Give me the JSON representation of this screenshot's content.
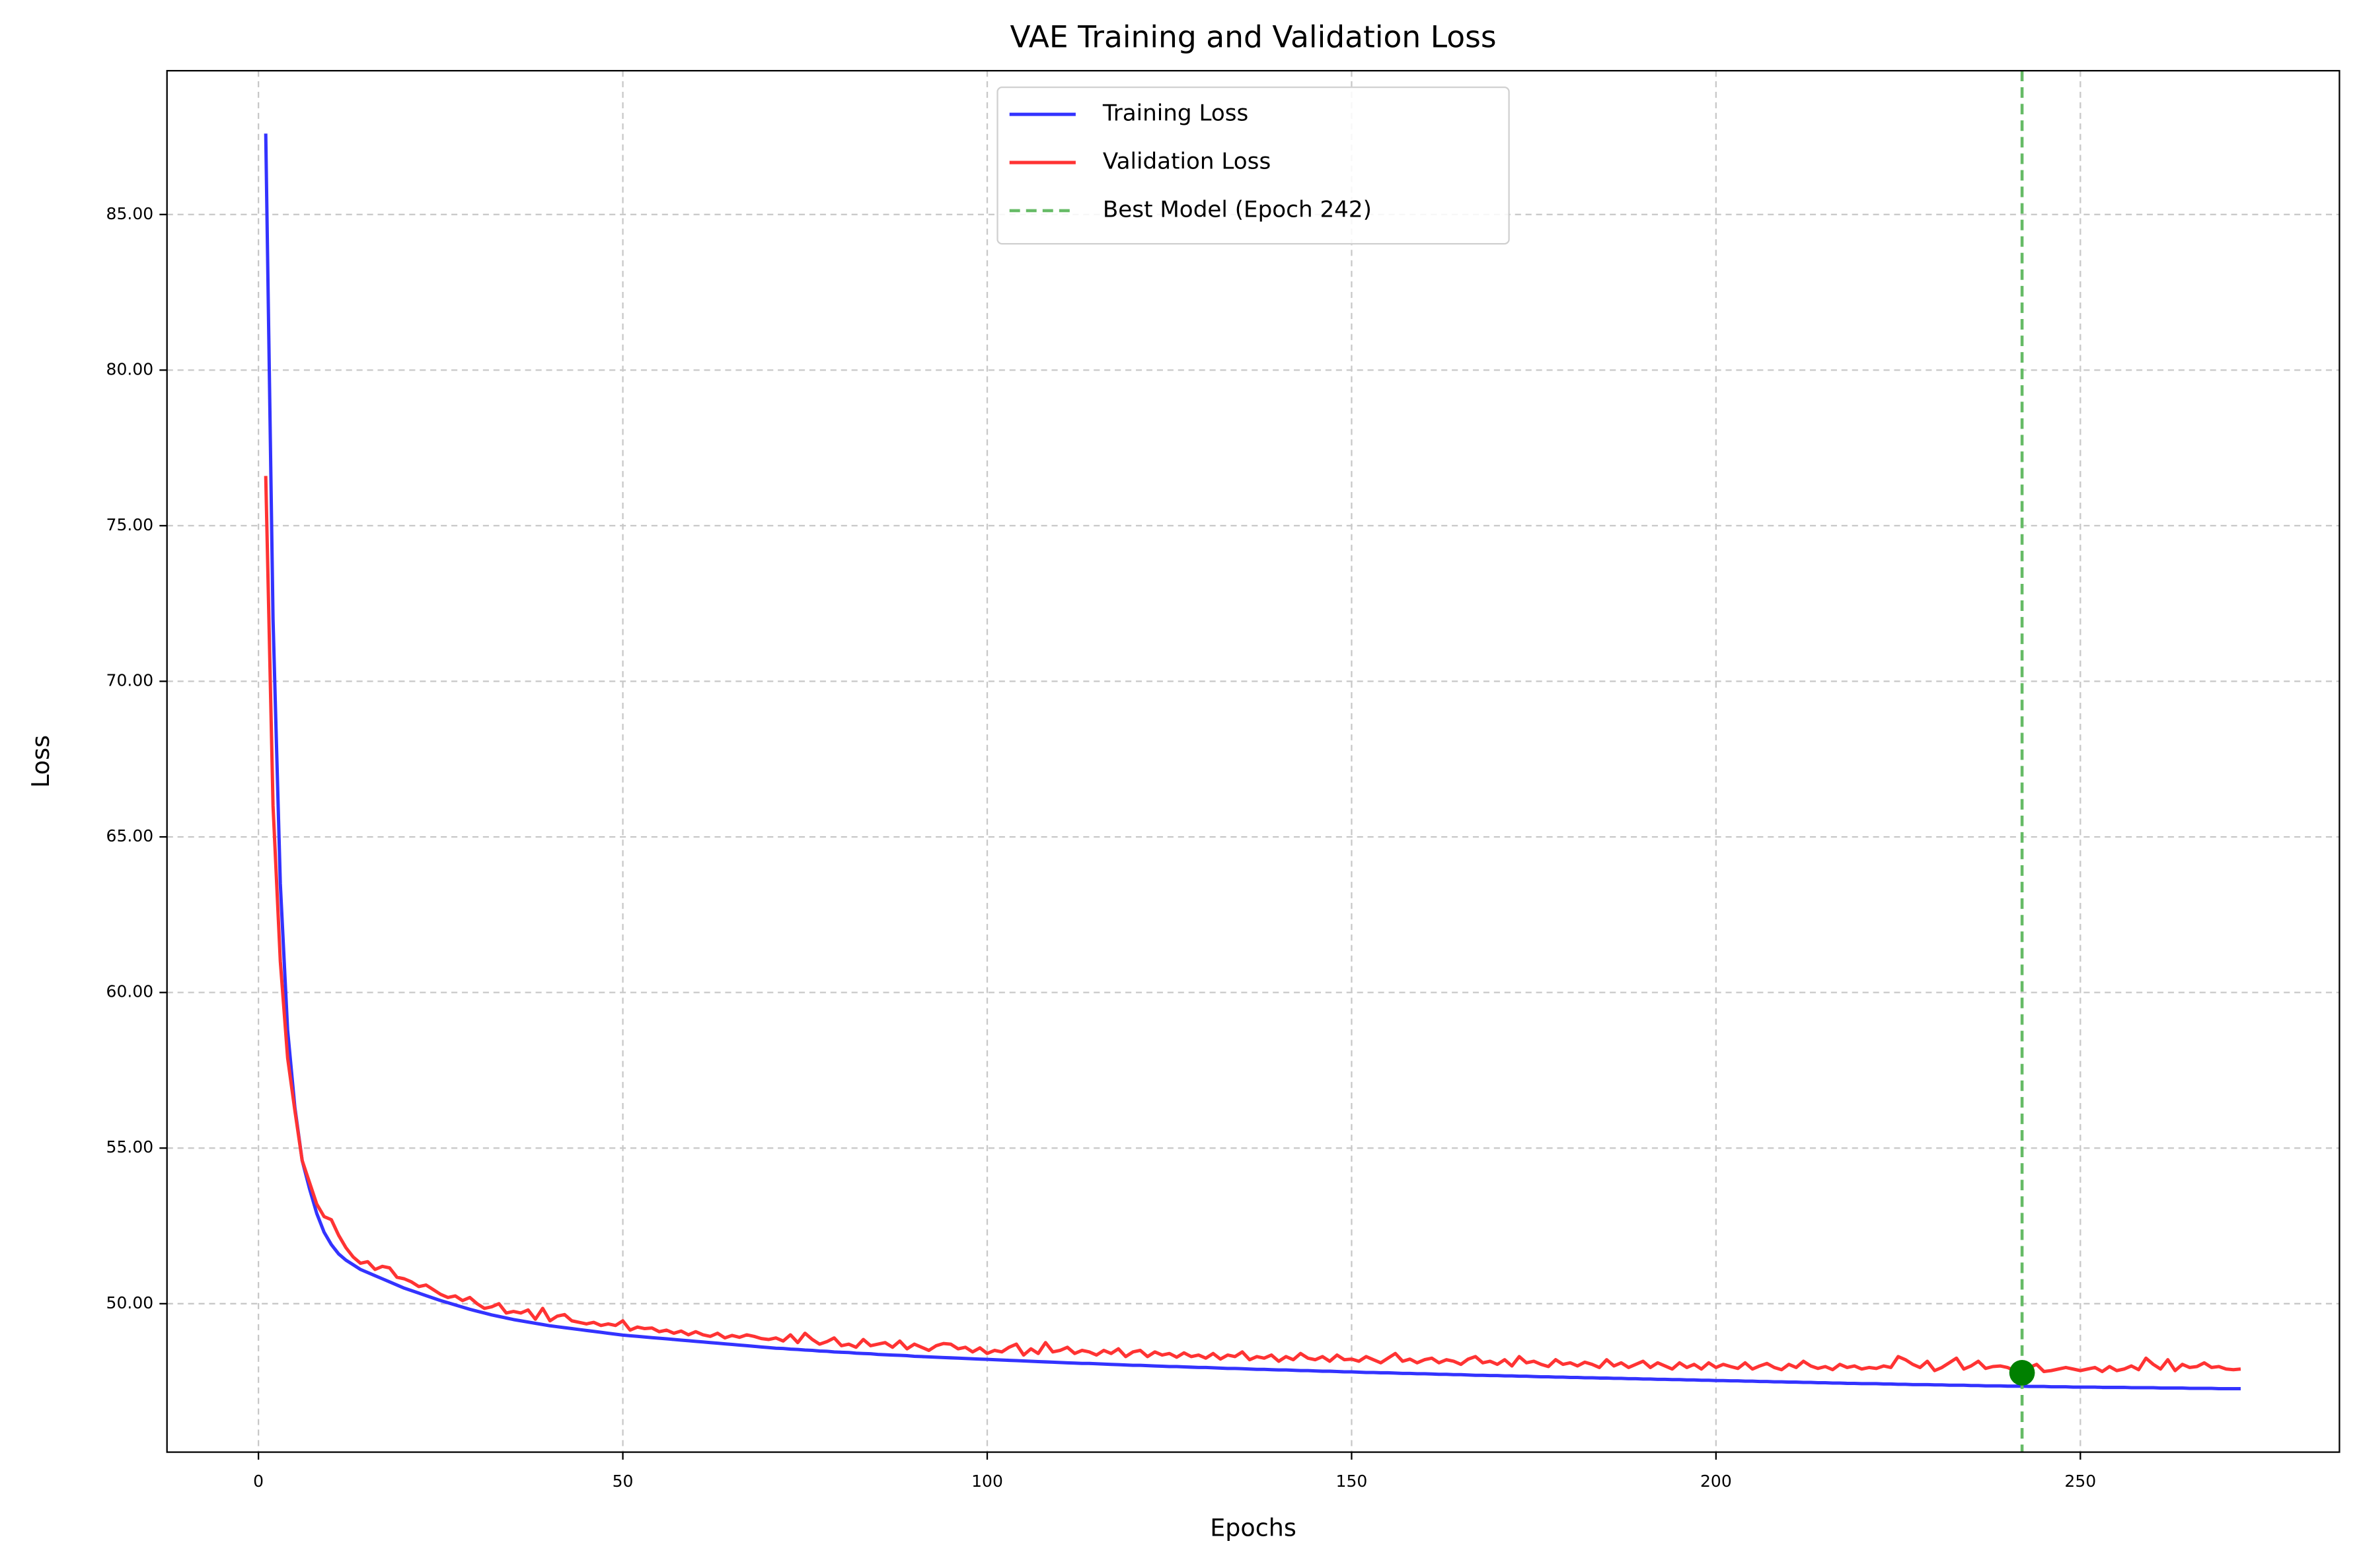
{
  "chart_data": {
    "type": "line",
    "title": "VAE Training and Validation Loss",
    "x_label": "Epochs",
    "y_label": "Loss",
    "x": [
      1,
      2,
      3,
      4,
      5,
      6,
      7,
      8,
      9,
      10,
      11,
      12,
      13,
      14,
      15,
      16,
      17,
      18,
      19,
      20,
      21,
      22,
      23,
      24,
      25,
      26,
      27,
      28,
      29,
      30,
      31,
      32,
      33,
      34,
      35,
      36,
      37,
      38,
      39,
      40,
      41,
      42,
      43,
      44,
      45,
      46,
      47,
      48,
      49,
      50,
      51,
      52,
      53,
      54,
      55,
      56,
      57,
      58,
      59,
      60,
      61,
      62,
      63,
      64,
      65,
      66,
      67,
      68,
      69,
      70,
      71,
      72,
      73,
      74,
      75,
      76,
      77,
      78,
      79,
      80,
      81,
      82,
      83,
      84,
      85,
      86,
      87,
      88,
      89,
      90,
      91,
      92,
      93,
      94,
      95,
      96,
      97,
      98,
      99,
      100,
      101,
      102,
      103,
      104,
      105,
      106,
      107,
      108,
      109,
      110,
      111,
      112,
      113,
      114,
      115,
      116,
      117,
      118,
      119,
      120,
      121,
      122,
      123,
      124,
      125,
      126,
      127,
      128,
      129,
      130,
      131,
      132,
      133,
      134,
      135,
      136,
      137,
      138,
      139,
      140,
      141,
      142,
      143,
      144,
      145,
      146,
      147,
      148,
      149,
      150,
      151,
      152,
      153,
      154,
      155,
      156,
      157,
      158,
      159,
      160,
      161,
      162,
      163,
      164,
      165,
      166,
      167,
      168,
      169,
      170,
      171,
      172,
      173,
      174,
      175,
      176,
      177,
      178,
      179,
      180,
      181,
      182,
      183,
      184,
      185,
      186,
      187,
      188,
      189,
      190,
      191,
      192,
      193,
      194,
      195,
      196,
      197,
      198,
      199,
      200,
      201,
      202,
      203,
      204,
      205,
      206,
      207,
      208,
      209,
      210,
      211,
      212,
      213,
      214,
      215,
      216,
      217,
      218,
      219,
      220,
      221,
      222,
      223,
      224,
      225,
      226,
      227,
      228,
      229,
      230,
      231,
      232,
      233,
      234,
      235,
      236,
      237,
      238,
      239,
      240,
      241,
      242,
      243,
      244,
      245,
      246,
      247,
      248,
      249,
      250,
      251,
      252,
      253,
      254,
      255,
      256,
      257,
      258,
      259,
      260,
      261,
      262,
      263,
      264,
      265,
      266,
      267,
      268,
      269,
      270,
      271,
      272
    ],
    "series": [
      {
        "name": "Training Loss",
        "color": "#3333ff",
        "values": [
          87.6,
          72.0,
          63.5,
          58.8,
          56.3,
          54.6,
          53.7,
          52.9,
          52.3,
          51.9,
          51.6,
          51.4,
          51.25,
          51.1,
          51.0,
          50.9,
          50.8,
          50.7,
          50.6,
          50.5,
          50.42,
          50.34,
          50.26,
          50.18,
          50.1,
          50.03,
          49.96,
          49.89,
          49.82,
          49.76,
          49.7,
          49.64,
          49.59,
          49.54,
          49.49,
          49.45,
          49.41,
          49.37,
          49.33,
          49.29,
          49.26,
          49.23,
          49.2,
          49.17,
          49.14,
          49.11,
          49.08,
          49.05,
          49.02,
          48.99,
          48.97,
          48.95,
          48.93,
          48.91,
          48.89,
          48.87,
          48.85,
          48.83,
          48.81,
          48.79,
          48.77,
          48.75,
          48.73,
          48.71,
          48.69,
          48.67,
          48.65,
          48.63,
          48.61,
          48.59,
          48.57,
          48.56,
          48.54,
          48.53,
          48.51,
          48.5,
          48.48,
          48.47,
          48.45,
          48.44,
          48.43,
          48.41,
          48.4,
          48.39,
          48.37,
          48.36,
          48.35,
          48.34,
          48.33,
          48.31,
          48.3,
          48.29,
          48.28,
          48.27,
          48.26,
          48.25,
          48.24,
          48.23,
          48.22,
          48.21,
          48.2,
          48.19,
          48.18,
          48.17,
          48.16,
          48.15,
          48.14,
          48.13,
          48.12,
          48.11,
          48.1,
          48.09,
          48.08,
          48.08,
          48.07,
          48.06,
          48.05,
          48.04,
          48.03,
          48.02,
          48.02,
          48.01,
          48.0,
          47.99,
          47.98,
          47.98,
          47.97,
          47.96,
          47.95,
          47.95,
          47.94,
          47.93,
          47.92,
          47.92,
          47.91,
          47.9,
          47.89,
          47.89,
          47.88,
          47.87,
          47.87,
          47.86,
          47.85,
          47.85,
          47.84,
          47.83,
          47.83,
          47.82,
          47.81,
          47.81,
          47.8,
          47.79,
          47.79,
          47.78,
          47.78,
          47.77,
          47.76,
          47.76,
          47.75,
          47.75,
          47.74,
          47.73,
          47.73,
          47.72,
          47.72,
          47.71,
          47.7,
          47.7,
          47.69,
          47.69,
          47.68,
          47.68,
          47.67,
          47.67,
          47.66,
          47.65,
          47.65,
          47.64,
          47.64,
          47.63,
          47.63,
          47.62,
          47.62,
          47.61,
          47.61,
          47.6,
          47.6,
          47.59,
          47.59,
          47.58,
          47.58,
          47.57,
          47.57,
          47.56,
          47.56,
          47.55,
          47.55,
          47.54,
          47.54,
          47.53,
          47.53,
          47.52,
          47.52,
          47.51,
          47.51,
          47.5,
          47.5,
          47.49,
          47.49,
          47.48,
          47.48,
          47.47,
          47.47,
          47.46,
          47.46,
          47.45,
          47.45,
          47.44,
          47.44,
          47.43,
          47.43,
          47.43,
          47.42,
          47.42,
          47.41,
          47.41,
          47.4,
          47.4,
          47.4,
          47.39,
          47.39,
          47.38,
          47.38,
          47.38,
          47.37,
          47.37,
          47.36,
          47.36,
          47.36,
          47.35,
          47.35,
          47.35,
          47.34,
          47.34,
          47.34,
          47.33,
          47.33,
          47.33,
          47.32,
          47.32,
          47.32,
          47.32,
          47.31,
          47.31,
          47.31,
          47.31,
          47.3,
          47.3,
          47.3,
          47.3,
          47.29,
          47.29,
          47.29,
          47.29,
          47.28,
          47.28,
          47.28,
          47.28,
          47.27,
          47.27,
          47.27,
          47.27
        ]
      },
      {
        "name": "Validation Loss",
        "color": "#ff3333",
        "values": [
          76.6,
          66.0,
          61.0,
          57.9,
          56.2,
          54.6,
          53.9,
          53.2,
          52.8,
          52.7,
          52.2,
          51.8,
          51.5,
          51.3,
          51.35,
          51.1,
          51.2,
          51.15,
          50.85,
          50.8,
          50.7,
          50.55,
          50.6,
          50.45,
          50.3,
          50.2,
          50.25,
          50.1,
          50.2,
          50.0,
          49.85,
          49.9,
          50.0,
          49.7,
          49.75,
          49.7,
          49.8,
          49.5,
          49.85,
          49.45,
          49.6,
          49.65,
          49.45,
          49.4,
          49.35,
          49.4,
          49.3,
          49.35,
          49.3,
          49.45,
          49.15,
          49.25,
          49.2,
          49.22,
          49.1,
          49.15,
          49.05,
          49.12,
          49.0,
          49.1,
          49.0,
          48.95,
          49.05,
          48.9,
          48.98,
          48.92,
          49.0,
          48.95,
          48.88,
          48.85,
          48.9,
          48.8,
          49.0,
          48.75,
          49.05,
          48.85,
          48.7,
          48.78,
          48.9,
          48.65,
          48.7,
          48.6,
          48.85,
          48.65,
          48.7,
          48.75,
          48.6,
          48.8,
          48.55,
          48.7,
          48.6,
          48.5,
          48.65,
          48.72,
          48.7,
          48.55,
          48.6,
          48.45,
          48.58,
          48.4,
          48.5,
          48.45,
          48.6,
          48.7,
          48.35,
          48.55,
          48.4,
          48.75,
          48.45,
          48.5,
          48.6,
          48.4,
          48.5,
          48.45,
          48.35,
          48.5,
          48.4,
          48.55,
          48.3,
          48.45,
          48.5,
          48.3,
          48.45,
          48.35,
          48.4,
          48.28,
          48.42,
          48.3,
          48.35,
          48.25,
          48.4,
          48.22,
          48.35,
          48.3,
          48.45,
          48.2,
          48.3,
          48.25,
          48.35,
          48.15,
          48.3,
          48.2,
          48.4,
          48.25,
          48.2,
          48.3,
          48.15,
          48.35,
          48.2,
          48.22,
          48.15,
          48.3,
          48.2,
          48.1,
          48.25,
          48.4,
          48.15,
          48.22,
          48.1,
          48.2,
          48.25,
          48.1,
          48.2,
          48.15,
          48.05,
          48.22,
          48.3,
          48.1,
          48.15,
          48.05,
          48.2,
          48.0,
          48.3,
          48.1,
          48.15,
          48.05,
          47.98,
          48.2,
          48.05,
          48.1,
          48.0,
          48.12,
          48.05,
          47.95,
          48.2,
          48.0,
          48.1,
          47.95,
          48.05,
          48.15,
          47.95,
          48.1,
          48.0,
          47.9,
          48.1,
          47.95,
          48.05,
          47.9,
          48.1,
          47.95,
          48.05,
          47.98,
          47.92,
          48.1,
          47.9,
          48.0,
          48.08,
          47.95,
          47.88,
          48.05,
          47.95,
          48.15,
          48.0,
          47.92,
          47.98,
          47.88,
          48.05,
          47.95,
          48.0,
          47.9,
          47.95,
          47.92,
          48.0,
          47.95,
          48.3,
          48.2,
          48.05,
          47.95,
          48.15,
          47.85,
          47.95,
          48.1,
          48.25,
          47.9,
          48.0,
          48.15,
          47.92,
          47.98,
          48.0,
          47.95,
          47.85,
          47.78,
          47.95,
          48.05,
          47.82,
          47.85,
          47.9,
          47.95,
          47.9,
          47.85,
          47.9,
          47.95,
          47.82,
          47.98,
          47.85,
          47.9,
          48.0,
          47.88,
          48.25,
          48.05,
          47.9,
          48.2,
          47.85,
          48.05,
          47.95,
          47.98,
          48.1,
          47.95,
          47.98,
          47.9,
          47.88,
          47.9
        ]
      }
    ],
    "best_model": {
      "name": "Best Model (Epoch 242)",
      "x": 242,
      "color": "#66bb66",
      "marker_color": "#008000",
      "marker_series": 1,
      "linestyle": "dashed"
    },
    "xlim": [
      -12.55,
      285.55
    ],
    "ylim": [
      45.23,
      89.62
    ],
    "xticks": [
      0,
      50,
      100,
      150,
      200,
      250
    ],
    "yticks": [
      {
        "value": 50,
        "label": "50.00"
      },
      {
        "value": 55,
        "label": "55.00"
      },
      {
        "value": 60,
        "label": "60.00"
      },
      {
        "value": 65,
        "label": "65.00"
      },
      {
        "value": 70,
        "label": "70.00"
      },
      {
        "value": 75,
        "label": "75.00"
      },
      {
        "value": 80,
        "label": "80.00"
      },
      {
        "value": 85,
        "label": "85.00"
      }
    ],
    "grid": true,
    "legend": "upper center"
  }
}
